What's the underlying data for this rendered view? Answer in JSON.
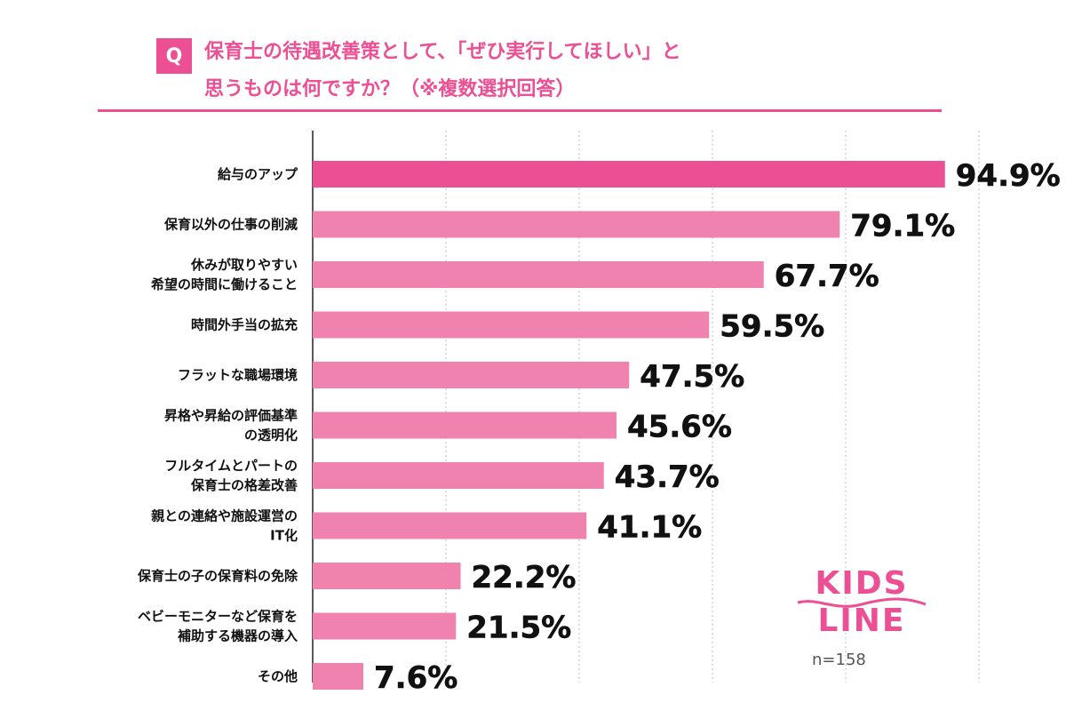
{
  "question": {
    "badge": "Q",
    "line1": "保育士の待遇改善策として、「ぜひ実行してほしい」と",
    "line2": "思うものは何ですか？（※複数選択回答）"
  },
  "logo": {
    "line1": "KIDS",
    "line2": "LINE",
    "color": "#ec4f93"
  },
  "sample": "n=158",
  "chart_data": {
    "type": "bar",
    "orientation": "horizontal",
    "categories": [
      [
        "給与のアップ"
      ],
      [
        "保育以外の仕事の削減"
      ],
      [
        "休みが取りやすい",
        "希望の時間に働けること"
      ],
      [
        "時間外手当の拡充"
      ],
      [
        "フラットな職場環境"
      ],
      [
        "昇格や昇給の評価基準",
        "の透明化"
      ],
      [
        "フルタイムとパートの",
        "保育士の格差改善"
      ],
      [
        "親との連絡や施設運営の",
        "IT化"
      ],
      [
        "保育士の子の保育料の免除"
      ],
      [
        "ベビーモニターなど保育を",
        "補助する機器の導入"
      ],
      [
        "その他"
      ]
    ],
    "values": [
      94.9,
      79.1,
      67.7,
      59.5,
      47.5,
      45.6,
      43.7,
      41.1,
      22.2,
      21.5,
      7.6
    ],
    "value_labels": [
      "94.9%",
      "79.1%",
      "67.7%",
      "59.5%",
      "47.5%",
      "45.6%",
      "43.7%",
      "41.1%",
      "22.2%",
      "21.5%",
      "7.6%"
    ],
    "xlim": [
      0,
      100
    ],
    "grid": true,
    "colors": {
      "top_bar": "#ec4f93",
      "bars": "#f082b0",
      "grid": "#bdbdbd",
      "axis": "#222222"
    }
  }
}
